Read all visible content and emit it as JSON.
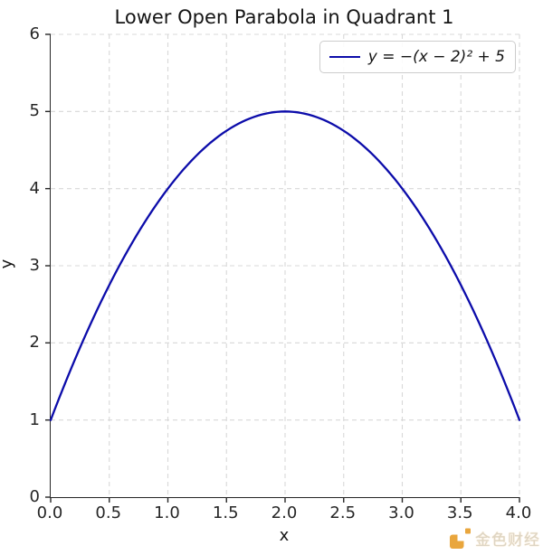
{
  "chart_data": {
    "type": "line",
    "title": "Lower Open Parabola in Quadrant 1",
    "xlabel": "x",
    "ylabel": "y",
    "xlim": [
      0,
      4
    ],
    "ylim": [
      0,
      6
    ],
    "x_tick_values": [
      0,
      0.5,
      1,
      1.5,
      2,
      2.5,
      3,
      3.5,
      4
    ],
    "x_tick_labels": [
      "0.0",
      "0.5",
      "1.0",
      "1.5",
      "2.0",
      "2.5",
      "3.0",
      "3.5",
      "4.0"
    ],
    "y_tick_values": [
      0,
      1,
      2,
      3,
      4,
      5,
      6
    ],
    "y_tick_labels": [
      "0",
      "1",
      "2",
      "3",
      "4",
      "5",
      "6"
    ],
    "grid": true,
    "grid_style": "dashed",
    "legend_position": "upper right",
    "series": [
      {
        "name": "y = −(x − 2)² + 5",
        "equation": {
          "form": "vertex",
          "a": -1,
          "h": 2,
          "k": 5
        },
        "x_range": [
          0,
          4
        ],
        "vertex": [
          2,
          5
        ],
        "endpoints": [
          [
            0,
            1
          ],
          [
            4,
            1
          ]
        ],
        "sample_points": {
          "x": [
            0,
            0.5,
            1,
            1.5,
            2,
            2.5,
            3,
            3.5,
            4
          ],
          "y": [
            1,
            2.75,
            4,
            4.75,
            5,
            4.75,
            4,
            2.75,
            1
          ]
        },
        "color": "#0c0caa"
      }
    ]
  },
  "legend": {
    "label": "y = −(x − 2)² + 5"
  },
  "watermark": {
    "text": "金色财经",
    "logo_color": "#e9a63d",
    "text_color": "#dcd5c6"
  },
  "colors": {
    "curve": "#0c0caa",
    "grid": "#d8d8d8",
    "axis": "#262626",
    "title_text": "#151515"
  }
}
